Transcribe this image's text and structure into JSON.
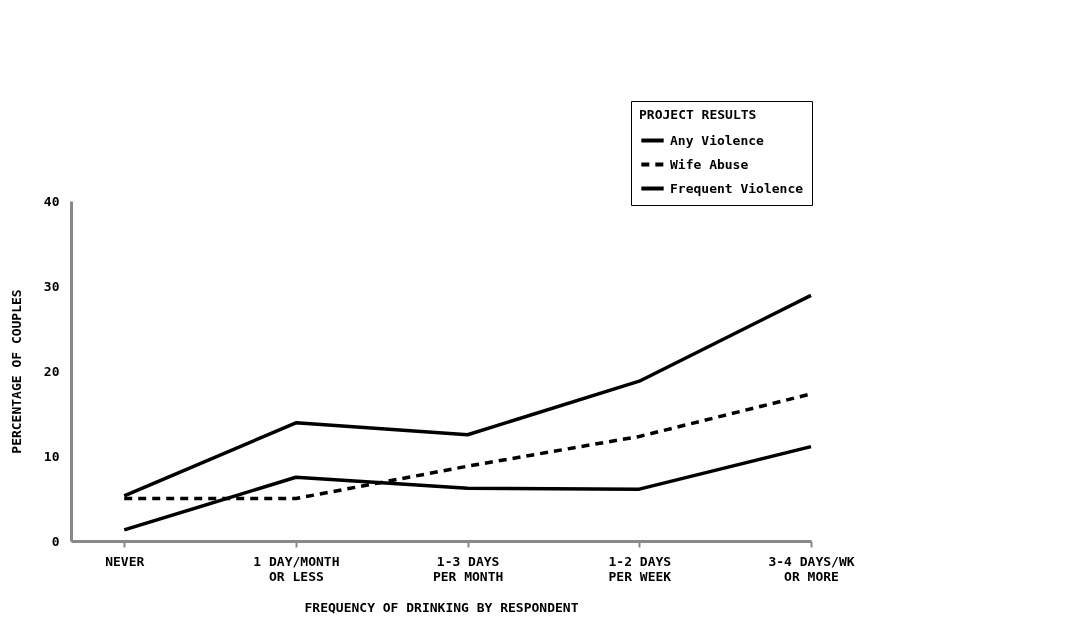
{
  "chart_data": {
    "type": "line",
    "xlabel": "FREQUENCY OF DRINKING BY RESPONDENT",
    "ylabel": "PERCENTAGE OF COUPLES",
    "legend_title": "PROJECT RESULTS",
    "categories": [
      "NEVER",
      "1 DAY/MONTH\nOR LESS",
      "1-3 DAYS\nPER MONTH",
      "1-2 DAYS\nPER WEEK",
      "3-4 DAYS/WK\nOR MORE"
    ],
    "series": [
      {
        "name": "Any Violence",
        "color": "#000000",
        "line_style": "solid",
        "values": [
          5.3,
          13.9,
          12.5,
          18.8,
          28.9
        ]
      },
      {
        "name": "Wife Abuse",
        "color": "#000000",
        "line_style": "dashed",
        "values": [
          5.0,
          5.0,
          8.8,
          12.3,
          17.3
        ]
      },
      {
        "name": "Frequent Violence",
        "color": "#000000",
        "line_style": "solid",
        "values": [
          1.3,
          7.5,
          6.2,
          6.1,
          11.1
        ]
      }
    ],
    "ylim": [
      0,
      40
    ],
    "yticks": [
      0,
      10,
      20,
      30,
      40
    ],
    "grid": false,
    "legend": "top right",
    "marker": "none"
  }
}
